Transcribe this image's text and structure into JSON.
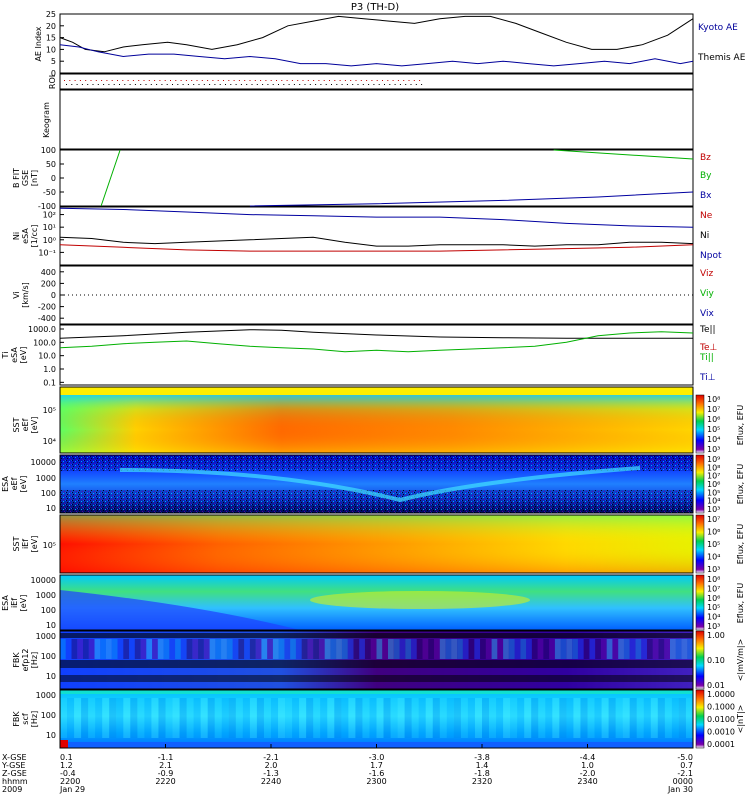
{
  "title": "P3 (TH-D)",
  "chart_data": [
    {
      "type": "line",
      "panel": "ae",
      "ylabel": "AE Index",
      "ylim": [
        0,
        25
      ],
      "yticks": [
        "0",
        "5",
        "10",
        "15",
        "20",
        "25"
      ],
      "series": [
        {
          "name": "Kyoto AE",
          "color": "#000000",
          "x": [
            0,
            0.02,
            0.04,
            0.07,
            0.1,
            0.13,
            0.17,
            0.2,
            0.24,
            0.28,
            0.32,
            0.36,
            0.4,
            0.44,
            0.48,
            0.52,
            0.56,
            0.6,
            0.64,
            0.68,
            0.72,
            0.76,
            0.8,
            0.84,
            0.88,
            0.92,
            0.96,
            1
          ],
          "values": [
            15,
            13,
            10,
            9,
            11,
            12,
            13,
            12,
            10,
            12,
            15,
            20,
            22,
            24,
            23,
            22,
            21,
            23,
            24,
            24,
            21,
            17,
            13,
            10,
            10,
            12,
            16,
            23
          ]
        },
        {
          "name": "Themis AE",
          "color": "#00009a",
          "x": [
            0,
            0.03,
            0.06,
            0.1,
            0.14,
            0.18,
            0.22,
            0.26,
            0.3,
            0.34,
            0.38,
            0.42,
            0.46,
            0.5,
            0.54,
            0.58,
            0.62,
            0.66,
            0.7,
            0.74,
            0.78,
            0.82,
            0.86,
            0.9,
            0.94,
            0.98,
            1
          ],
          "values": [
            12,
            11,
            9,
            7,
            8,
            8,
            7,
            6,
            7,
            6,
            4,
            4,
            3,
            4,
            3,
            4,
            5,
            4,
            5,
            4,
            3,
            4,
            5,
            4,
            6,
            4,
            5
          ]
        }
      ]
    },
    {
      "type": "scatter",
      "panel": "roi",
      "ylabel": "ROI"
    },
    {
      "type": "heatmap",
      "panel": "keogram",
      "ylabel": "Keogram"
    },
    {
      "type": "line",
      "panel": "bfit",
      "ylabel": [
        "B FIT",
        "GSE",
        "[nT]"
      ],
      "ylim": [
        -100,
        100
      ],
      "yticks": [
        "-100",
        "-50",
        "0",
        "50",
        "100"
      ],
      "series": [
        {
          "name": "Bz",
          "color": "#c00000",
          "x": [],
          "values": []
        },
        {
          "name": "By",
          "color": "#00b000",
          "segments": [
            {
              "x": [
                0.065,
                0.095
              ],
              "values": [
                -100,
                100
              ]
            },
            {
              "x": [
                0.78,
                1.0
              ],
              "values": [
                100,
                68
              ]
            }
          ]
        },
        {
          "name": "Bx",
          "color": "#0000a0",
          "x": [
            0.3,
            0.5,
            0.7,
            0.85,
            1.0
          ],
          "values": [
            -100,
            -92,
            -80,
            -68,
            -50
          ]
        }
      ]
    },
    {
      "type": "line",
      "panel": "density",
      "ylabel": [
        "Ni",
        "eSA",
        "[1/cc]"
      ],
      "ylog": true,
      "ylim": [
        -2,
        2.6
      ],
      "yticks": [
        "10²",
        "10¹",
        "10⁰",
        "10⁻¹"
      ],
      "series": [
        {
          "name": "Ne",
          "color": "#c00000",
          "x": [
            0,
            0.1,
            0.2,
            0.3,
            0.4,
            0.5,
            0.6,
            0.7,
            0.8,
            0.9,
            1
          ],
          "values": [
            -0.4,
            -0.6,
            -0.8,
            -0.9,
            -0.9,
            -0.9,
            -0.9,
            -0.8,
            -0.7,
            -0.6,
            -0.4
          ]
        },
        {
          "name": "Ni",
          "color": "#000000",
          "x": [
            0,
            0.05,
            0.1,
            0.15,
            0.2,
            0.25,
            0.3,
            0.35,
            0.4,
            0.45,
            0.5,
            0.55,
            0.6,
            0.65,
            0.7,
            0.75,
            0.8,
            0.85,
            0.9,
            0.95,
            1
          ],
          "values": [
            0.2,
            0.1,
            -0.2,
            -0.3,
            -0.2,
            -0.1,
            0,
            0.1,
            0.2,
            -0.2,
            -0.5,
            -0.5,
            -0.4,
            -0.4,
            -0.4,
            -0.5,
            -0.4,
            -0.4,
            -0.2,
            -0.2,
            -0.3
          ]
        },
        {
          "name": "Npot",
          "color": "#0000a0",
          "x": [
            0,
            0.1,
            0.2,
            0.3,
            0.4,
            0.5,
            0.6,
            0.7,
            0.8,
            0.9,
            1
          ],
          "values": [
            2.5,
            2.4,
            2.2,
            2.0,
            1.9,
            1.8,
            1.8,
            1.6,
            1.3,
            1.1,
            1.0
          ]
        }
      ]
    },
    {
      "type": "line",
      "panel": "velocity",
      "ylabel": [
        "Vi",
        "[km/s]"
      ],
      "ylim": [
        -500,
        500
      ],
      "yticks": [
        "400",
        "200",
        "0",
        "-200",
        "-400"
      ],
      "series": [
        {
          "name": "Viz",
          "color": "#c00000",
          "x": [],
          "values": []
        },
        {
          "name": "Viy",
          "color": "#00b000",
          "x": [],
          "values": []
        },
        {
          "name": "Vix",
          "color": "#0000a0",
          "x": [],
          "values": []
        }
      ]
    },
    {
      "type": "line",
      "panel": "temperature",
      "ylabel": [
        "Ti",
        "eSA",
        "[eV]"
      ],
      "ylog": true,
      "ylim": [
        -1.2,
        3.3
      ],
      "yticks": [
        "1000.0",
        "100.0",
        "10.0",
        "1.0",
        "0.1"
      ],
      "series": [
        {
          "name": "Te||",
          "color": "#000000",
          "x": [
            0,
            0.1,
            0.2,
            0.3,
            0.35,
            0.4,
            0.5,
            0.6,
            0.7,
            0.8,
            0.9,
            1
          ],
          "values": [
            2.3,
            2.5,
            2.75,
            2.95,
            2.9,
            2.75,
            2.55,
            2.4,
            2.35,
            2.3,
            2.3,
            2.3
          ]
        },
        {
          "name": "Te⊥",
          "color": "#c00000",
          "x": [],
          "values": []
        },
        {
          "name": "Ti||",
          "color": "#00b000",
          "x": [
            0,
            0.05,
            0.1,
            0.15,
            0.2,
            0.25,
            0.3,
            0.35,
            0.4,
            0.45,
            0.5,
            0.55,
            0.6,
            0.65,
            0.7,
            0.75,
            0.8,
            0.85,
            0.9,
            0.95,
            1
          ],
          "values": [
            1.6,
            1.7,
            1.9,
            2.0,
            2.1,
            1.9,
            1.7,
            1.6,
            1.5,
            1.3,
            1.4,
            1.3,
            1.4,
            1.5,
            1.6,
            1.7,
            2.0,
            2.5,
            2.7,
            2.8,
            2.7
          ]
        },
        {
          "name": "Ti⊥",
          "color": "#0000a0",
          "x": [],
          "values": []
        }
      ]
    },
    {
      "type": "heatmap",
      "panel": "sst-electron",
      "ylabel": [
        "SST",
        "eEf",
        "[eV]"
      ],
      "yticks": [
        "10⁵",
        "10⁴"
      ],
      "colorbar": {
        "label": "Eflux, EFU",
        "ticks": [
          "10⁸",
          "10⁷",
          "10⁶",
          "10⁵",
          "10⁴",
          "10³"
        ]
      }
    },
    {
      "type": "heatmap",
      "panel": "esa-electron",
      "ylabel": [
        "ESA",
        "eEf",
        "[eV]"
      ],
      "yticks": [
        "10000",
        "1000",
        "100",
        "10"
      ],
      "colorbar": {
        "label": "Eflux, EFU",
        "ticks": [
          "10⁹",
          "10⁸",
          "10⁷",
          "10⁶",
          "10⁵",
          "10⁴",
          "10³"
        ]
      }
    },
    {
      "type": "heatmap",
      "panel": "sst-ion",
      "ylabel": [
        "SST",
        "iEf",
        "[eV]"
      ],
      "yticks": [
        "10⁵"
      ],
      "colorbar": {
        "label": "Eflux, EFU",
        "ticks": [
          "10⁷",
          "10⁶",
          "10⁵",
          "10⁴",
          "10³"
        ]
      }
    },
    {
      "type": "heatmap",
      "panel": "esa-ion",
      "ylabel": [
        "ESA",
        "iEf",
        "[eV]"
      ],
      "yticks": [
        "10000",
        "1000",
        "100",
        "10"
      ],
      "colorbar": {
        "label": "Eflux, EFU",
        "ticks": [
          "10⁸",
          "10⁷",
          "10⁶",
          "10⁵",
          "10⁴",
          "10³"
        ]
      }
    },
    {
      "type": "heatmap",
      "panel": "fbk-e",
      "ylabel": [
        "FBK",
        "efp12",
        "[Hz]"
      ],
      "yticks": [
        "1000",
        "100",
        "10"
      ],
      "colorbar": {
        "label": "<|mV/m|>",
        "ticks": [
          "1.00",
          "0.10",
          "0.01"
        ]
      }
    },
    {
      "type": "heatmap",
      "panel": "fbk-b",
      "ylabel": [
        "FBK",
        "scf",
        "[Hz]"
      ],
      "yticks": [
        "1000",
        "100",
        "10"
      ],
      "colorbar": {
        "label": "<|nT|>",
        "ticks": [
          "1.0000",
          "0.1000",
          "0.0100",
          "0.0010",
          "0.0001"
        ]
      }
    }
  ],
  "x_axis": {
    "row_labels": [
      "X-GSE",
      "Y-GSE",
      "Z-GSE",
      "hhmm",
      "2009"
    ],
    "ticks": [
      {
        "x": "0.1",
        "y": "1.2",
        "z": "-0.4",
        "time": "2200",
        "date": "Jan 29"
      },
      {
        "x": "-1.1",
        "y": "2.1",
        "z": "-0.9",
        "time": "2220",
        "date": ""
      },
      {
        "x": "-2.1",
        "y": "2.0",
        "z": "-1.3",
        "time": "2240",
        "date": ""
      },
      {
        "x": "-3.0",
        "y": "1.7",
        "z": "-1.6",
        "time": "2300",
        "date": ""
      },
      {
        "x": "-3.8",
        "y": "1.4",
        "z": "-1.8",
        "time": "2320",
        "date": ""
      },
      {
        "x": "-4.4",
        "y": "1.0",
        "z": "-2.0",
        "time": "2340",
        "date": ""
      },
      {
        "x": "-5.0",
        "y": "0.7",
        "z": "-2.1",
        "time": "0000",
        "date": "Jan 30"
      }
    ]
  }
}
